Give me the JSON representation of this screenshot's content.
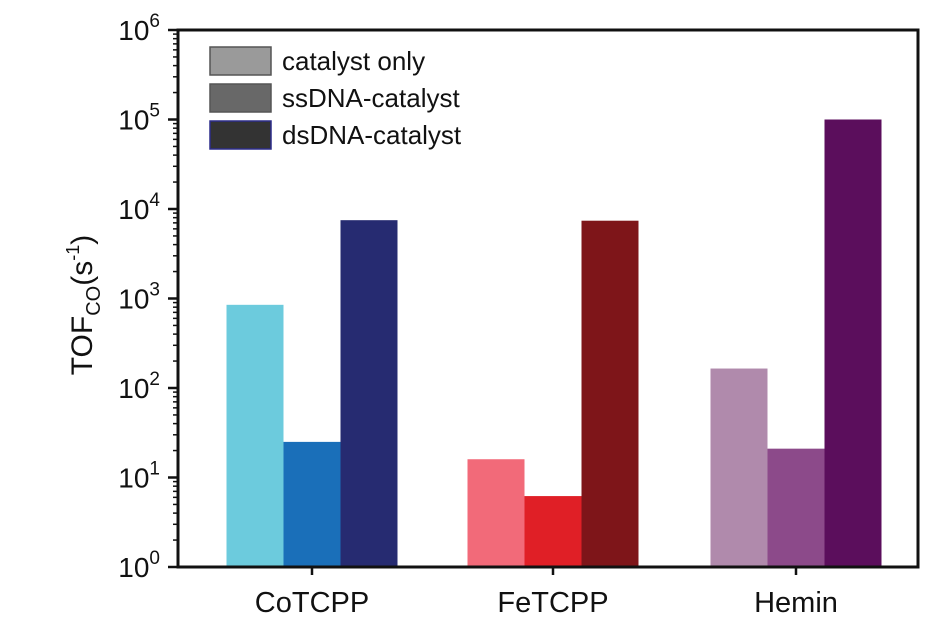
{
  "chart_data": {
    "type": "bar",
    "scale": "log",
    "categories": [
      "CoTCPP",
      "FeTCPP",
      "Hemin"
    ],
    "series": [
      {
        "name": "catalyst only",
        "values": [
          850,
          16,
          165
        ],
        "colors": [
          "#6ccbdd",
          "#f26a79",
          "#b08aac"
        ],
        "legend_color": "#9a9a9a"
      },
      {
        "name": "ssDNA-catalyst",
        "values": [
          25,
          6.2,
          21
        ],
        "colors": [
          "#1a6fb9",
          "#e01f26",
          "#8c4a8a"
        ],
        "legend_color": "#686868"
      },
      {
        "name": "dsDNA-catalyst",
        "values": [
          7500,
          7400,
          100000
        ],
        "colors": [
          "#262b71",
          "#7e1519",
          "#5b0e5c"
        ],
        "legend_color": "#333333"
      }
    ],
    "ylim": [
      1,
      1000000
    ],
    "y_ticks": [
      {
        "value": 1,
        "base": "10",
        "exp": "0"
      },
      {
        "value": 10,
        "base": "10",
        "exp": "1"
      },
      {
        "value": 100,
        "base": "10",
        "exp": "2"
      },
      {
        "value": 1000,
        "base": "10",
        "exp": "3"
      },
      {
        "value": 10000,
        "base": "10",
        "exp": "4"
      },
      {
        "value": 100000,
        "base": "10",
        "exp": "5"
      },
      {
        "value": 1000000,
        "base": "10",
        "exp": "6"
      }
    ],
    "ylabel": {
      "main": "TOF",
      "sub": "CO",
      "unit_open": "(s",
      "unit_exp": "-1",
      "unit_close": ")"
    },
    "xlabel": "",
    "title": "",
    "legend_position": "top-left",
    "grid": false
  }
}
